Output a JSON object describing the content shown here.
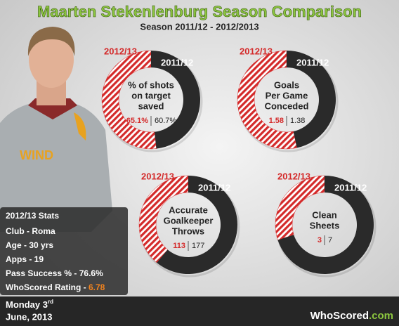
{
  "title": "Maarten Stekenlenburg Season Comparison",
  "subtitle": "Season 2011/12 - 2012/2013",
  "chart_data": [
    {
      "type": "pie",
      "title": [
        "% of shots",
        "on target",
        "saved"
      ],
      "categories": [
        "2012/13",
        "2011/12"
      ],
      "values": [
        65.1,
        60.7
      ],
      "value_labels": [
        "65.1%",
        "60.7%"
      ],
      "colors": [
        "#d42a2a",
        "#2a2a2a"
      ]
    },
    {
      "type": "pie",
      "title": [
        "Goals",
        "Per Game",
        "Conceded"
      ],
      "categories": [
        "2012/13",
        "2011/12"
      ],
      "values": [
        1.58,
        1.38
      ],
      "value_labels": [
        "1.58",
        "1.38"
      ],
      "colors": [
        "#d42a2a",
        "#2a2a2a"
      ]
    },
    {
      "type": "pie",
      "title": [
        "Accurate",
        "Goalkeeper",
        "Throws"
      ],
      "categories": [
        "2012/13",
        "2011/12"
      ],
      "values": [
        113,
        177
      ],
      "value_labels": [
        "113",
        "177"
      ],
      "colors": [
        "#d42a2a",
        "#2a2a2a"
      ]
    },
    {
      "type": "pie",
      "title": [
        "Clean",
        "Sheets"
      ],
      "categories": [
        "2012/13",
        "2011/12"
      ],
      "values": [
        3,
        7
      ],
      "value_labels": [
        "3",
        "7"
      ],
      "colors": [
        "#d42a2a",
        "#2a2a2a"
      ]
    }
  ],
  "stats": {
    "title": "2012/13 Stats",
    "rows": [
      "Club - Roma",
      "Age - 30 yrs",
      "Apps - 19",
      "Pass Success % - 76.6%"
    ],
    "rating": {
      "label": "WhoScored Rating - ",
      "value": "6.78"
    }
  },
  "date": {
    "line1": "Monday 3",
    "sup": "rd",
    "line2": "June, 2013"
  },
  "logo": {
    "name": "WhoScored",
    "suffix": ".com"
  }
}
